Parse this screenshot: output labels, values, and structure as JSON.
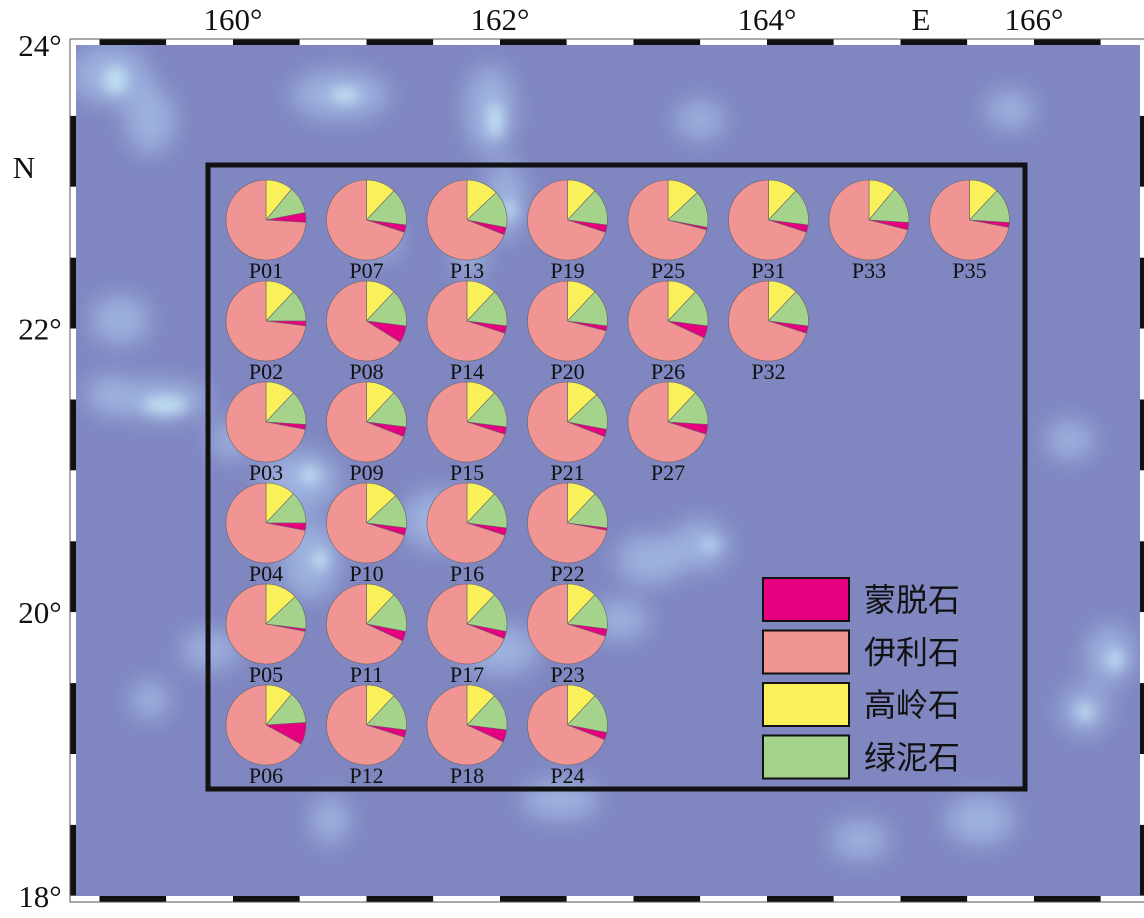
{
  "map": {
    "lon_ticks": [
      {
        "value": 160,
        "label": "160°"
      },
      {
        "value": 162,
        "label": "162°"
      },
      {
        "value": 164,
        "label": "164°"
      },
      {
        "value": 166,
        "label": "166°"
      }
    ],
    "lat_ticks": [
      {
        "value": 24,
        "label": "24°"
      },
      {
        "value": 22,
        "label": "22°"
      },
      {
        "value": 20,
        "label": "20°"
      },
      {
        "value": 18,
        "label": "18°"
      }
    ],
    "east_label": "E",
    "north_label": "N",
    "colors": {
      "ocean": "#7f86c0",
      "shallow": "#a2b8e4",
      "highlight": "#c4e2f4",
      "frame_dark": "#111111"
    }
  },
  "legend": {
    "items": [
      {
        "label": "蒙脱石",
        "color": "#e4007f"
      },
      {
        "label": "伊利石",
        "color": "#f09494"
      },
      {
        "label": "高岭石",
        "color": "#faf05a"
      },
      {
        "label": "绿泥石",
        "color": "#a6d38c"
      }
    ]
  },
  "sites": [
    {
      "name": "P01",
      "row": 0,
      "col": 0,
      "smectite": 4,
      "illite": 74,
      "kaolinite": 11,
      "chlorite": 11
    },
    {
      "name": "P07",
      "row": 0,
      "col": 1,
      "smectite": 3,
      "illite": 70,
      "kaolinite": 12,
      "chlorite": 15
    },
    {
      "name": "P13",
      "row": 0,
      "col": 2,
      "smectite": 3,
      "illite": 69,
      "kaolinite": 13,
      "chlorite": 15
    },
    {
      "name": "P19",
      "row": 0,
      "col": 3,
      "smectite": 3,
      "illite": 70,
      "kaolinite": 12,
      "chlorite": 15
    },
    {
      "name": "P25",
      "row": 0,
      "col": 4,
      "smectite": 1,
      "illite": 71,
      "kaolinite": 13,
      "chlorite": 15
    },
    {
      "name": "P31",
      "row": 0,
      "col": 5,
      "smectite": 3,
      "illite": 70,
      "kaolinite": 12,
      "chlorite": 15
    },
    {
      "name": "P33",
      "row": 0,
      "col": 6,
      "smectite": 3,
      "illite": 71,
      "kaolinite": 11,
      "chlorite": 15
    },
    {
      "name": "P35",
      "row": 0,
      "col": 7,
      "smectite": 2,
      "illite": 72,
      "kaolinite": 12,
      "chlorite": 14
    },
    {
      "name": "P02",
      "row": 1,
      "col": 0,
      "smectite": 2,
      "illite": 73,
      "kaolinite": 12,
      "chlorite": 13
    },
    {
      "name": "P08",
      "row": 1,
      "col": 1,
      "smectite": 7,
      "illite": 66,
      "kaolinite": 12,
      "chlorite": 15
    },
    {
      "name": "P14",
      "row": 1,
      "col": 2,
      "smectite": 3,
      "illite": 70,
      "kaolinite": 12,
      "chlorite": 15
    },
    {
      "name": "P20",
      "row": 1,
      "col": 3,
      "smectite": 2,
      "illite": 71,
      "kaolinite": 12,
      "chlorite": 15
    },
    {
      "name": "P26",
      "row": 1,
      "col": 4,
      "smectite": 5,
      "illite": 68,
      "kaolinite": 12,
      "chlorite": 15
    },
    {
      "name": "P32",
      "row": 1,
      "col": 5,
      "smectite": 3,
      "illite": 70,
      "kaolinite": 12,
      "chlorite": 15
    },
    {
      "name": "P03",
      "row": 2,
      "col": 0,
      "smectite": 2,
      "illite": 72,
      "kaolinite": 12,
      "chlorite": 14
    },
    {
      "name": "P09",
      "row": 2,
      "col": 1,
      "smectite": 4,
      "illite": 69,
      "kaolinite": 12,
      "chlorite": 15
    },
    {
      "name": "P15",
      "row": 2,
      "col": 2,
      "smectite": 3,
      "illite": 70,
      "kaolinite": 12,
      "chlorite": 15
    },
    {
      "name": "P21",
      "row": 2,
      "col": 3,
      "smectite": 3,
      "illite": 69,
      "kaolinite": 13,
      "chlorite": 15
    },
    {
      "name": "P27",
      "row": 2,
      "col": 4,
      "smectite": 4,
      "illite": 70,
      "kaolinite": 12,
      "chlorite": 14
    },
    {
      "name": "P04",
      "row": 3,
      "col": 0,
      "smectite": 3,
      "illite": 72,
      "kaolinite": 12,
      "chlorite": 13
    },
    {
      "name": "P10",
      "row": 3,
      "col": 1,
      "smectite": 3,
      "illite": 70,
      "kaolinite": 13,
      "chlorite": 14
    },
    {
      "name": "P16",
      "row": 3,
      "col": 2,
      "smectite": 3,
      "illite": 70,
      "kaolinite": 12,
      "chlorite": 15
    },
    {
      "name": "P22",
      "row": 3,
      "col": 3,
      "smectite": 1,
      "illite": 72,
      "kaolinite": 12,
      "chlorite": 15
    },
    {
      "name": "P05",
      "row": 4,
      "col": 0,
      "smectite": 1,
      "illite": 72,
      "kaolinite": 13,
      "chlorite": 14
    },
    {
      "name": "P11",
      "row": 4,
      "col": 1,
      "smectite": 4,
      "illite": 68,
      "kaolinite": 12,
      "chlorite": 16
    },
    {
      "name": "P17",
      "row": 4,
      "col": 2,
      "smectite": 3,
      "illite": 69,
      "kaolinite": 12,
      "chlorite": 16
    },
    {
      "name": "P23",
      "row": 4,
      "col": 3,
      "smectite": 3,
      "illite": 70,
      "kaolinite": 12,
      "chlorite": 15
    },
    {
      "name": "P06",
      "row": 5,
      "col": 0,
      "smectite": 9,
      "illite": 67,
      "kaolinite": 11,
      "chlorite": 13
    },
    {
      "name": "P12",
      "row": 5,
      "col": 1,
      "smectite": 3,
      "illite": 70,
      "kaolinite": 12,
      "chlorite": 15
    },
    {
      "name": "P18",
      "row": 5,
      "col": 2,
      "smectite": 5,
      "illite": 68,
      "kaolinite": 12,
      "chlorite": 15
    },
    {
      "name": "P24",
      "row": 5,
      "col": 3,
      "smectite": 3,
      "illite": 69,
      "kaolinite": 12,
      "chlorite": 16
    }
  ]
}
